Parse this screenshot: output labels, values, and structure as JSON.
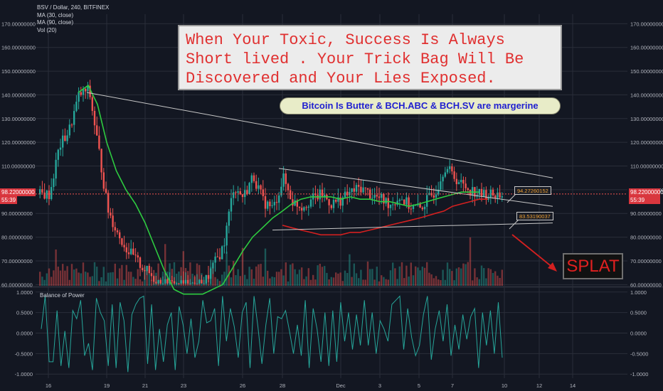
{
  "header": {
    "symbol": "BSV / Dollar, 240, BITFINEX",
    "indicators": [
      "MA (30, close)",
      "MA (90, close)",
      "Vol (20)"
    ],
    "sub_indicator": "Balance of Power"
  },
  "annotations": {
    "note_lines": [
      "When Your Toxic, Success Is Always",
      "Short lived . Your Trick Bag Will Be",
      "Discovered and Your Lies Exposed."
    ],
    "bubble": "Bitcoin Is Butter &  BCH.ABC & BCH.SV are margerine",
    "splat": "SPLAT",
    "callout_upper": "94.27260152",
    "callout_lower": "83.53190037"
  },
  "last_price": {
    "value": "98.22000000",
    "countdown": "55:39"
  },
  "colors": {
    "background": "#131722",
    "bull": "#26a69a",
    "bear": "#ef5350",
    "ma30": "#2ecc40",
    "ma90": "#d42020",
    "bop": "#26a69a",
    "trendline": "#c8c8c8",
    "arrow": "#d42020"
  },
  "chart_data": {
    "type": "candlestick",
    "price_axis": {
      "ylim": [
        59.5,
        174
      ],
      "ticks": [
        "170.00000000",
        "160.00000000",
        "150.00000000",
        "140.00000000",
        "130.00000000",
        "120.00000000",
        "110.00000000",
        "100.00000000",
        "90.00000000",
        "80.00000000",
        "70.00000000",
        "60.00000000"
      ]
    },
    "bop_axis": {
      "ylim": [
        -1.1,
        1.1
      ],
      "ticks": [
        "1.0000",
        "0.5000",
        "0.0000",
        "-0.5000",
        "-1.0000"
      ]
    },
    "x_axis": {
      "labels": [
        "16",
        "19",
        "21",
        "23",
        "26",
        "28",
        "Dec",
        "3",
        "5",
        "7",
        "10",
        "12",
        "14"
      ]
    },
    "price_series": [
      {
        "d": "16",
        "v": 97
      },
      {
        "d": "16.5",
        "v": 118
      },
      {
        "d": "17",
        "v": 125
      },
      {
        "d": "17.5",
        "v": 140
      },
      {
        "d": "18",
        "v": 142
      },
      {
        "d": "18.5",
        "v": 118
      },
      {
        "d": "19",
        "v": 92
      },
      {
        "d": "19.5",
        "v": 82
      },
      {
        "d": "20",
        "v": 75
      },
      {
        "d": "20.5",
        "v": 70
      },
      {
        "d": "21",
        "v": 66
      },
      {
        "d": "21.5",
        "v": 62
      },
      {
        "d": "22",
        "v": 60
      },
      {
        "d": "22.5",
        "v": 60
      },
      {
        "d": "23",
        "v": 60
      },
      {
        "d": "23.5",
        "v": 60
      },
      {
        "d": "24",
        "v": 60
      },
      {
        "d": "25",
        "v": 76
      },
      {
        "d": "25.5",
        "v": 101
      },
      {
        "d": "26",
        "v": 97
      },
      {
        "d": "26.5",
        "v": 106
      },
      {
        "d": "27",
        "v": 95
      },
      {
        "d": "27.5",
        "v": 92
      },
      {
        "d": "28",
        "v": 105
      },
      {
        "d": "28.5",
        "v": 95
      },
      {
        "d": "29",
        "v": 93
      },
      {
        "d": "29.5",
        "v": 96
      },
      {
        "d": "30",
        "v": 98
      },
      {
        "d": "30.5",
        "v": 94
      },
      {
        "d": "Dec",
        "v": 96
      },
      {
        "d": "1.5",
        "v": 99
      },
      {
        "d": "2",
        "v": 101
      },
      {
        "d": "2.5",
        "v": 98
      },
      {
        "d": "3",
        "v": 96
      },
      {
        "d": "3.5",
        "v": 94
      },
      {
        "d": "4",
        "v": 97
      },
      {
        "d": "4.5",
        "v": 93
      },
      {
        "d": "5",
        "v": 92
      },
      {
        "d": "5.5",
        "v": 96
      },
      {
        "d": "6",
        "v": 100
      },
      {
        "d": "6.5",
        "v": 110
      },
      {
        "d": "7",
        "v": 106
      },
      {
        "d": "7.5",
        "v": 102
      },
      {
        "d": "8",
        "v": 100
      },
      {
        "d": "8.5",
        "v": 98
      },
      {
        "d": "9",
        "v": 98
      }
    ],
    "ma30": [
      {
        "d": "17.5",
        "v": 141
      },
      {
        "d": "18",
        "v": 144
      },
      {
        "d": "18.5",
        "v": 136
      },
      {
        "d": "19",
        "v": 120
      },
      {
        "d": "19.5",
        "v": 108
      },
      {
        "d": "20",
        "v": 100
      },
      {
        "d": "20.5",
        "v": 94
      },
      {
        "d": "21",
        "v": 86
      },
      {
        "d": "21.5",
        "v": 76
      },
      {
        "d": "22",
        "v": 66
      },
      {
        "d": "22.5",
        "v": 58
      },
      {
        "d": "23",
        "v": 56
      },
      {
        "d": "24",
        "v": 56
      },
      {
        "d": "25",
        "v": 60
      },
      {
        "d": "25.5",
        "v": 67
      },
      {
        "d": "26",
        "v": 74
      },
      {
        "d": "26.5",
        "v": 80
      },
      {
        "d": "27",
        "v": 84
      },
      {
        "d": "27.5",
        "v": 88
      },
      {
        "d": "28",
        "v": 91
      },
      {
        "d": "28.5",
        "v": 94
      },
      {
        "d": "29",
        "v": 96
      },
      {
        "d": "29.5",
        "v": 97
      },
      {
        "d": "30",
        "v": 97
      },
      {
        "d": "30.5",
        "v": 97
      },
      {
        "d": "Dec",
        "v": 96
      },
      {
        "d": "1.5",
        "v": 97
      },
      {
        "d": "2",
        "v": 96
      },
      {
        "d": "2.5",
        "v": 96
      },
      {
        "d": "3",
        "v": 95
      },
      {
        "d": "3.5",
        "v": 95
      },
      {
        "d": "4",
        "v": 94
      },
      {
        "d": "4.5",
        "v": 93
      },
      {
        "d": "5",
        "v": 94
      },
      {
        "d": "5.5",
        "v": 95
      },
      {
        "d": "6",
        "v": 96
      },
      {
        "d": "6.5",
        "v": 97
      },
      {
        "d": "7",
        "v": 98
      },
      {
        "d": "7.5",
        "v": 99
      },
      {
        "d": "8",
        "v": 99
      },
      {
        "d": "8.5",
        "v": 99
      }
    ],
    "ma90": [
      {
        "d": "28",
        "v": 85
      },
      {
        "d": "28.5",
        "v": 84
      },
      {
        "d": "29",
        "v": 83
      },
      {
        "d": "29.5",
        "v": 82
      },
      {
        "d": "30",
        "v": 81
      },
      {
        "d": "30.5",
        "v": 81
      },
      {
        "d": "Dec",
        "v": 81
      },
      {
        "d": "1.5",
        "v": 82
      },
      {
        "d": "2",
        "v": 82
      },
      {
        "d": "2.5",
        "v": 83
      },
      {
        "d": "3",
        "v": 84
      },
      {
        "d": "3.5",
        "v": 85
      },
      {
        "d": "4",
        "v": 86
      },
      {
        "d": "4.5",
        "v": 87
      },
      {
        "d": "5",
        "v": 88
      },
      {
        "d": "5.5",
        "v": 89
      },
      {
        "d": "6",
        "v": 90
      },
      {
        "d": "6.5",
        "v": 91
      },
      {
        "d": "7",
        "v": 93
      },
      {
        "d": "7.5",
        "v": 94
      },
      {
        "d": "8",
        "v": 95
      },
      {
        "d": "8.5",
        "v": 96
      },
      {
        "d": "9",
        "v": 96
      }
    ],
    "bop_series": [
      0.1,
      0.9,
      -0.7,
      -0.7,
      0.55,
      -0.8,
      0.05,
      -0.85,
      0.55,
      0.35,
      0.8,
      -0.55,
      -0.25,
      -0.9,
      0.85,
      0.5,
      0.3,
      -0.8,
      0.7,
      -0.85,
      0.75,
      0.3,
      -0.95,
      0.45,
      0.7,
      0.85,
      0.9,
      -0.75,
      0.7,
      -0.9,
      0.1,
      -0.7,
      0.2,
      0.5,
      -0.9,
      0.65,
      0.2,
      -0.5,
      0.35,
      -0.6,
      -0.2,
      0.8,
      0.25,
      0.3,
      0.6,
      -0.8,
      0.9,
      -0.2,
      0.6,
      0.15,
      -0.6,
      0.5,
      0.75,
      -0.85,
      0.9,
      0.15,
      -0.75,
      0.2,
      0.85,
      -0.5,
      0.4,
      0.35,
      0.55,
      0.05,
      -0.5,
      0.2,
      -0.55,
      0.8,
      -0.85,
      0.6,
      0.1,
      -0.7,
      0.5,
      -0.8,
      0.55,
      -0.7,
      0.75,
      -0.2,
      0.5,
      -0.4,
      0.45,
      -0.3,
      0.8,
      -0.3,
      0.5,
      -0.5,
      0.3,
      0.1,
      -0.2,
      0.7,
      0.8,
      0.9,
      -0.4,
      0.6,
      -0.1,
      -0.55,
      -0.3,
      0.45,
      0.9,
      -0.65,
      0.1,
      0.55,
      -0.2,
      0.7,
      -0.55,
      0.2,
      -0.4,
      0.45,
      -0.15,
      0.4,
      0.6,
      -0.85,
      0.5,
      -0.3,
      0.55,
      -0.5,
      0.75,
      -0.6
    ]
  }
}
